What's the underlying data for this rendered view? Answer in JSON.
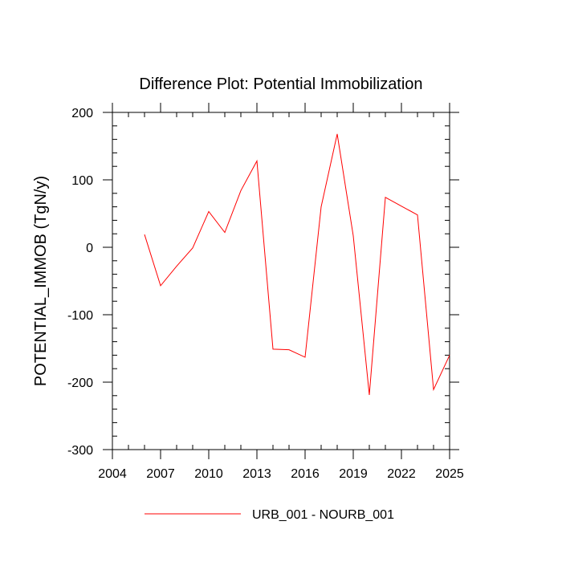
{
  "chart_data": {
    "type": "line",
    "title": "Difference Plot: Potential Immobilization",
    "xlabel": "",
    "ylabel": "POTENTIAL_IMMOB  (TgN/y)",
    "xlim": [
      2004,
      2025
    ],
    "ylim": [
      -300,
      200
    ],
    "x_ticks": [
      2004,
      2007,
      2010,
      2013,
      2016,
      2019,
      2022,
      2025
    ],
    "y_ticks": [
      -300,
      -200,
      -100,
      0,
      100,
      200
    ],
    "x_minor_step": 1,
    "y_minor_step": 20,
    "grid": false,
    "legend_position": "bottom",
    "series": [
      {
        "name": "URB_001 - NOURB_001",
        "color": "#ff0000",
        "x": [
          2006,
          2007,
          2008,
          2009,
          2010,
          2011,
          2012,
          2013,
          2014,
          2015,
          2016,
          2017,
          2018,
          2019,
          2020,
          2021,
          2022,
          2023,
          2024,
          2025
        ],
        "y": [
          19,
          -57,
          -28,
          -1,
          53,
          22,
          84,
          128,
          -151,
          -152,
          -163,
          60,
          168,
          17,
          -219,
          74,
          61,
          48,
          -211,
          -160
        ]
      }
    ]
  }
}
